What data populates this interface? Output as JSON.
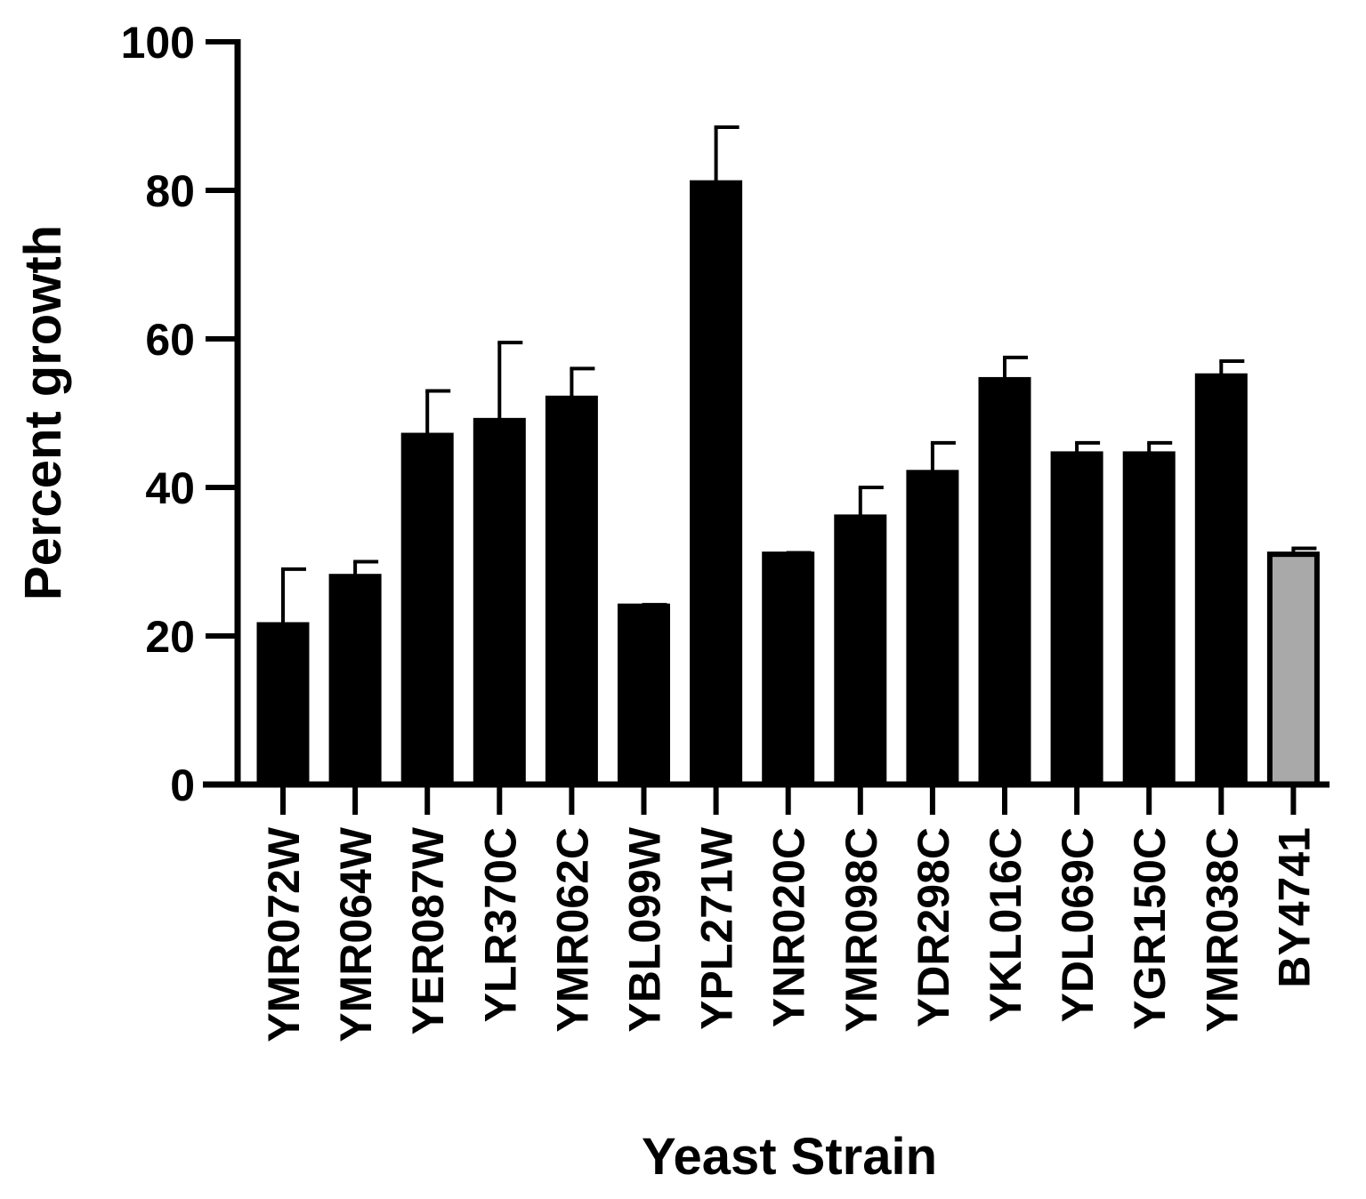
{
  "chart_data": {
    "type": "bar",
    "xlabel": "Yeast Strain",
    "ylabel": "Percent growth",
    "ylim": [
      0,
      100
    ],
    "yticks": [
      0,
      20,
      40,
      60,
      80,
      100
    ],
    "grid": false,
    "categories": [
      "YMR072W",
      "YMR064W",
      "YER087W",
      "YLR370C",
      "YMR062C",
      "YBL099W",
      "YPL271W",
      "YNR020C",
      "YMR098C",
      "YDR298C",
      "YKL016C",
      "YDL069C",
      "YGR150C",
      "YMR038C",
      "BY4741"
    ],
    "values": [
      21.5,
      28,
      47,
      49,
      52,
      24,
      81,
      31,
      36,
      42,
      54.5,
      44.5,
      44.5,
      55,
      31
    ],
    "errors": [
      7.5,
      2,
      6,
      10.5,
      4,
      0.2,
      7.5,
      0.2,
      4,
      4,
      3,
      1.5,
      1.5,
      2,
      0.8
    ],
    "colors": [
      "#000000",
      "#000000",
      "#000000",
      "#000000",
      "#000000",
      "#000000",
      "#000000",
      "#000000",
      "#000000",
      "#000000",
      "#000000",
      "#000000",
      "#000000",
      "#000000",
      "#a9a9a9"
    ]
  }
}
